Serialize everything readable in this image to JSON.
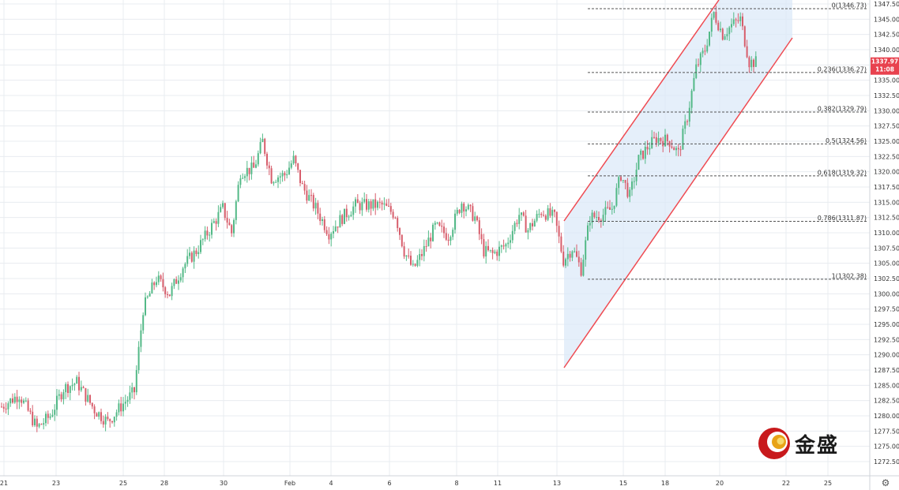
{
  "chart_data": {
    "type": "candlestick",
    "title": "",
    "xlabel": "",
    "ylabel": "",
    "ylim": [
      1272.5,
      1347.5
    ],
    "y_tick_step": 2.5,
    "grid": true,
    "colors": {
      "up": "#53b987",
      "down": "#d75d6b",
      "channel_line": "#ef4b52",
      "channel_fill": "#dce9f8",
      "price_tag": "#e8424e"
    },
    "x_ticks": [
      "21",
      "23",
      "25",
      "28",
      "30",
      "Feb",
      "4",
      "6",
      "8",
      "11",
      "13",
      "15",
      "18",
      "20",
      "22",
      "25"
    ],
    "current_price": "1337.97",
    "time_remaining": "11:08",
    "fib_levels": [
      {
        "label": "0(1346.73)",
        "ratio": 0,
        "value": 1346.73
      },
      {
        "label": "0.236(1336.27)",
        "ratio": 0.236,
        "value": 1336.27
      },
      {
        "label": "0.382(1329.79)",
        "ratio": 0.382,
        "value": 1329.79
      },
      {
        "label": "0.5(1324.56)",
        "ratio": 0.5,
        "value": 1324.56
      },
      {
        "label": "0.618(1319.32)",
        "ratio": 0.618,
        "value": 1319.32
      },
      {
        "label": "0.786(1311.87)",
        "ratio": 0.786,
        "value": 1311.87
      },
      {
        "label": "1(1302.38)",
        "ratio": 1,
        "value": 1302.38
      }
    ],
    "price_path": [
      {
        "i": 0,
        "close": 1281.5
      },
      {
        "i": 8,
        "close": 1283.5
      },
      {
        "i": 16,
        "close": 1278.0
      },
      {
        "i": 22,
        "close": 1280.0
      },
      {
        "i": 28,
        "close": 1284.5
      },
      {
        "i": 34,
        "close": 1285.5
      },
      {
        "i": 42,
        "close": 1281.0
      },
      {
        "i": 48,
        "close": 1279.0
      },
      {
        "i": 55,
        "close": 1282.0
      },
      {
        "i": 60,
        "close": 1284.0
      },
      {
        "i": 64,
        "close": 1297.5
      },
      {
        "i": 70,
        "close": 1302.5
      },
      {
        "i": 76,
        "close": 1300.0
      },
      {
        "i": 82,
        "close": 1304.5
      },
      {
        "i": 88,
        "close": 1307.0
      },
      {
        "i": 94,
        "close": 1310.5
      },
      {
        "i": 100,
        "close": 1314.0
      },
      {
        "i": 104,
        "close": 1310.0
      },
      {
        "i": 108,
        "close": 1320.0
      },
      {
        "i": 114,
        "close": 1320.5
      },
      {
        "i": 118,
        "close": 1325.0
      },
      {
        "i": 122,
        "close": 1319.0
      },
      {
        "i": 128,
        "close": 1319.5
      },
      {
        "i": 132,
        "close": 1322.0
      },
      {
        "i": 136,
        "close": 1317.5
      },
      {
        "i": 142,
        "close": 1314.0
      },
      {
        "i": 148,
        "close": 1310.0
      },
      {
        "i": 154,
        "close": 1312.5
      },
      {
        "i": 160,
        "close": 1314.5
      },
      {
        "i": 166,
        "close": 1314.5
      },
      {
        "i": 172,
        "close": 1314.5
      },
      {
        "i": 178,
        "close": 1313.0
      },
      {
        "i": 182,
        "close": 1307.0
      },
      {
        "i": 186,
        "close": 1304.0
      },
      {
        "i": 190,
        "close": 1306.5
      },
      {
        "i": 196,
        "close": 1311.0
      },
      {
        "i": 202,
        "close": 1309.5
      },
      {
        "i": 208,
        "close": 1315.0
      },
      {
        "i": 214,
        "close": 1312.5
      },
      {
        "i": 218,
        "close": 1307.0
      },
      {
        "i": 222,
        "close": 1306.5
      },
      {
        "i": 228,
        "close": 1308.0
      },
      {
        "i": 234,
        "close": 1313.0
      },
      {
        "i": 238,
        "close": 1310.5
      },
      {
        "i": 244,
        "close": 1313.5
      },
      {
        "i": 250,
        "close": 1312.5
      },
      {
        "i": 254,
        "close": 1305.5
      },
      {
        "i": 258,
        "close": 1307.5
      },
      {
        "i": 262,
        "close": 1304.0
      },
      {
        "i": 266,
        "close": 1312.5
      },
      {
        "i": 272,
        "close": 1313.0
      },
      {
        "i": 276,
        "close": 1314.0
      },
      {
        "i": 280,
        "close": 1319.5
      },
      {
        "i": 284,
        "close": 1316.0
      },
      {
        "i": 288,
        "close": 1322.0
      },
      {
        "i": 292,
        "close": 1324.0
      },
      {
        "i": 296,
        "close": 1325.5
      },
      {
        "i": 302,
        "close": 1325.0
      },
      {
        "i": 306,
        "close": 1323.0
      },
      {
        "i": 310,
        "close": 1329.0
      },
      {
        "i": 314,
        "close": 1337.0
      },
      {
        "i": 318,
        "close": 1340.0
      },
      {
        "i": 322,
        "close": 1346.0
      },
      {
        "i": 326,
        "close": 1342.5
      },
      {
        "i": 330,
        "close": 1344.0
      },
      {
        "i": 334,
        "close": 1345.0
      },
      {
        "i": 338,
        "close": 1338.0
      },
      {
        "i": 342,
        "close": 1337.97
      }
    ]
  },
  "logo": {
    "text": "金盛"
  },
  "icons": {
    "settings": "gear-icon",
    "logo_mark": "coin-logo-icon"
  }
}
